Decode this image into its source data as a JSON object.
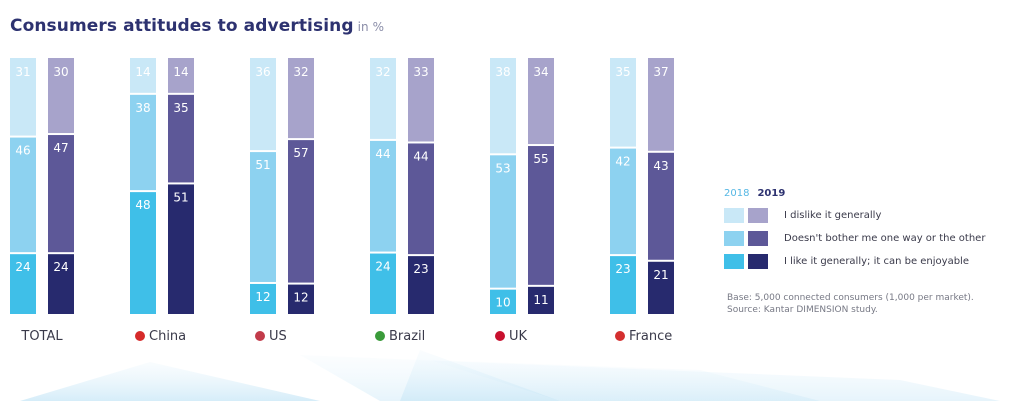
{
  "header": {
    "title": "Consumers attitudes to advertising",
    "unit": "in %"
  },
  "chart_data": {
    "type": "bar",
    "stacked": true,
    "categories": [
      "TOTAL",
      "China",
      "US",
      "Brazil",
      "UK",
      "France"
    ],
    "years": [
      "2018",
      "2019"
    ],
    "series": [
      {
        "name": "I dislike it generally",
        "values_2018": [
          31,
          14,
          36,
          32,
          38,
          35
        ],
        "values_2019": [
          30,
          14,
          32,
          33,
          34,
          37
        ]
      },
      {
        "name": "Doesn't bother me one way or the other",
        "values_2018": [
          46,
          38,
          51,
          44,
          53,
          42
        ],
        "values_2019": [
          47,
          35,
          57,
          44,
          55,
          43
        ]
      },
      {
        "name": "I like it generally; it can be enjoyable",
        "values_2018": [
          24,
          48,
          12,
          24,
          10,
          23
        ],
        "values_2019": [
          24,
          51,
          12,
          23,
          11,
          21
        ]
      }
    ],
    "colors": {
      "2018": [
        "#c9e8f7",
        "#8dd2f0",
        "#3fbfe8"
      ],
      "2019": [
        "#a7a3cb",
        "#5d5898",
        "#272a6e"
      ]
    },
    "legend_position": "right"
  },
  "legend": {
    "year_2018": "2018",
    "year_2019": "2019",
    "items": [
      "I dislike it generally",
      "Doesn't bother me one way or the other",
      "I like it generally; it can be enjoyable"
    ]
  },
  "notes": {
    "base": "Base: 5,000 connected consumers (1,000 per market).",
    "source": "Source: Kantar DIMENSION study."
  }
}
